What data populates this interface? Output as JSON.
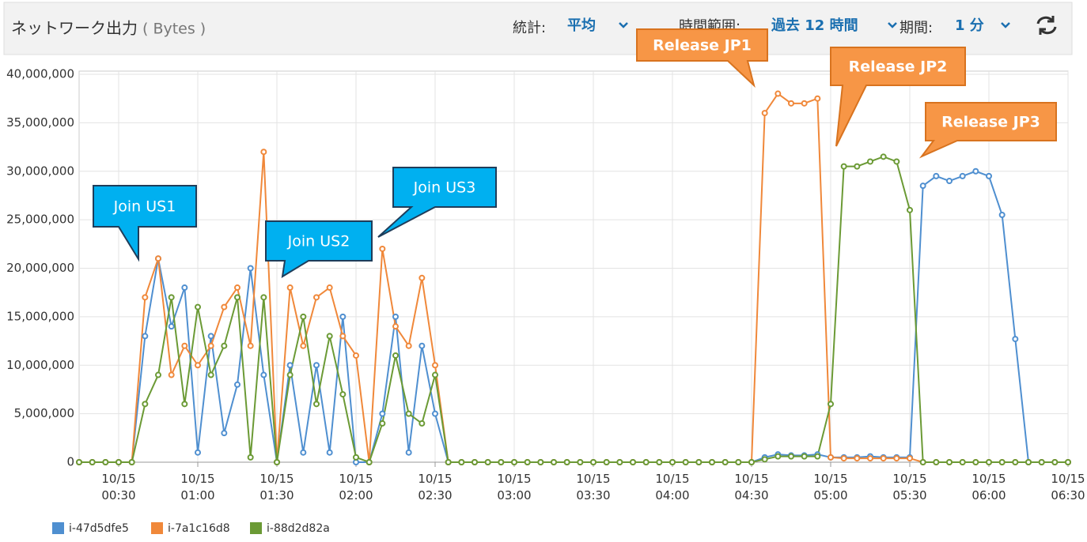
{
  "header": {
    "title": "ネットワーク出力",
    "unit": "( Bytes )",
    "stat_label": "統計:",
    "stat_value": "平均",
    "range_label": "時間範囲:",
    "range_value": "過去 12 時間",
    "period_label": "期間:",
    "period_value": "1 分"
  },
  "chart_data": {
    "type": "line",
    "x": [
      "10/15 00:15",
      "10/15 00:20",
      "10/15 00:25",
      "10/15 00:30",
      "10/15 00:35",
      "10/15 00:40",
      "10/15 00:45",
      "10/15 00:50",
      "10/15 00:55",
      "10/15 01:00",
      "10/15 01:05",
      "10/15 01:10",
      "10/15 01:15",
      "10/15 01:20",
      "10/15 01:25",
      "10/15 01:30",
      "10/15 01:35",
      "10/15 01:40",
      "10/15 01:45",
      "10/15 01:50",
      "10/15 01:55",
      "10/15 02:00",
      "10/15 02:05",
      "10/15 02:10",
      "10/15 02:15",
      "10/15 02:20",
      "10/15 02:25",
      "10/15 02:30",
      "10/15 02:35",
      "10/15 02:40",
      "10/15 02:45",
      "10/15 02:50",
      "10/15 02:55",
      "10/15 03:00",
      "10/15 03:05",
      "10/15 03:10",
      "10/15 03:15",
      "10/15 03:20",
      "10/15 03:25",
      "10/15 03:30",
      "10/15 03:35",
      "10/15 03:40",
      "10/15 03:45",
      "10/15 03:50",
      "10/15 03:55",
      "10/15 04:00",
      "10/15 04:05",
      "10/15 04:10",
      "10/15 04:15",
      "10/15 04:20",
      "10/15 04:25",
      "10/15 04:30",
      "10/15 04:35",
      "10/15 04:40",
      "10/15 04:45",
      "10/15 04:50",
      "10/15 04:55",
      "10/15 05:00",
      "10/15 05:05",
      "10/15 05:10",
      "10/15 05:15",
      "10/15 05:20",
      "10/15 05:25",
      "10/15 05:30",
      "10/15 05:35",
      "10/15 05:40",
      "10/15 05:45",
      "10/15 05:50",
      "10/15 05:55",
      "10/15 06:00",
      "10/15 06:05",
      "10/15 06:10",
      "10/15 06:15",
      "10/15 06:20",
      "10/15 06:25",
      "10/15 06:30"
    ],
    "series": [
      {
        "name": "i-47d5dfe5",
        "color": "#4f8fd0",
        "values": [
          0,
          0,
          0,
          0,
          0,
          13000000,
          21000000,
          14000000,
          18000000,
          1000000,
          13000000,
          3000000,
          8000000,
          20000000,
          9000000,
          0,
          10000000,
          1000000,
          10000000,
          1000000,
          15000000,
          0,
          0,
          5000000,
          15000000,
          1000000,
          12000000,
          5000000,
          0,
          0,
          0,
          0,
          0,
          0,
          0,
          0,
          0,
          0,
          0,
          0,
          0,
          0,
          0,
          0,
          0,
          0,
          0,
          0,
          0,
          0,
          0,
          0,
          500000,
          800000,
          700000,
          700000,
          800000,
          500000,
          500000,
          500000,
          600000,
          500000,
          500000,
          500000,
          28500000,
          29500000,
          29000000,
          29500000,
          30000000,
          29500000,
          25500000,
          12700000,
          0,
          0,
          0,
          0
        ]
      },
      {
        "name": "i-7a1c16d8",
        "color": "#f0883a",
        "values": [
          0,
          0,
          0,
          0,
          0,
          17000000,
          21000000,
          9000000,
          12000000,
          10000000,
          12000000,
          16000000,
          18000000,
          12000000,
          32000000,
          0,
          18000000,
          12000000,
          17000000,
          18000000,
          13000000,
          11000000,
          0,
          22000000,
          14000000,
          12000000,
          19000000,
          10000000,
          0,
          0,
          0,
          0,
          0,
          0,
          0,
          0,
          0,
          0,
          0,
          0,
          0,
          0,
          0,
          0,
          0,
          0,
          0,
          0,
          0,
          0,
          0,
          0,
          36000000,
          38000000,
          37000000,
          37000000,
          37500000,
          500000,
          400000,
          400000,
          400000,
          400000,
          400000,
          400000,
          0,
          0,
          0,
          0,
          0,
          0,
          0,
          0,
          0,
          0,
          0,
          0
        ]
      },
      {
        "name": "i-88d2d82a",
        "color": "#6b9a35",
        "values": [
          0,
          0,
          0,
          0,
          0,
          6000000,
          9000000,
          17000000,
          6000000,
          16000000,
          9000000,
          12000000,
          17000000,
          500000,
          17000000,
          0,
          9000000,
          15000000,
          6000000,
          13000000,
          7000000,
          500000,
          0,
          4000000,
          11000000,
          5000000,
          4000000,
          9000000,
          0,
          0,
          0,
          0,
          0,
          0,
          0,
          0,
          0,
          0,
          0,
          0,
          0,
          0,
          0,
          0,
          0,
          0,
          0,
          0,
          0,
          0,
          0,
          0,
          300000,
          600000,
          600000,
          600000,
          600000,
          6000000,
          30500000,
          30500000,
          31000000,
          31500000,
          31000000,
          26000000,
          0,
          0,
          0,
          0,
          0,
          0,
          0,
          0,
          0,
          0,
          0,
          0
        ]
      }
    ],
    "ylim": [
      0,
      40000000
    ],
    "yticks": [
      {
        "value": 0,
        "label": "0"
      },
      {
        "value": 5000000,
        "label": "5,000,000"
      },
      {
        "value": 10000000,
        "label": "10,000,000"
      },
      {
        "value": 15000000,
        "label": "15,000,000"
      },
      {
        "value": 20000000,
        "label": "20,000,000"
      },
      {
        "value": 25000000,
        "label": "25,000,000"
      },
      {
        "value": 30000000,
        "label": "30,000,000"
      },
      {
        "value": 35000000,
        "label": "35,000,000"
      },
      {
        "value": 40000000,
        "label": "40,000,000"
      }
    ],
    "xticks": [
      {
        "value": "10/15 00:30",
        "label": "10/15\n00:30"
      },
      {
        "value": "10/15 01:00",
        "label": "10/15\n01:00"
      },
      {
        "value": "10/15 01:30",
        "label": "10/15\n01:30"
      },
      {
        "value": "10/15 02:00",
        "label": "10/15\n02:00"
      },
      {
        "value": "10/15 02:30",
        "label": "10/15\n02:30"
      },
      {
        "value": "10/15 03:00",
        "label": "10/15\n03:00"
      },
      {
        "value": "10/15 03:30",
        "label": "10/15\n03:30"
      },
      {
        "value": "10/15 04:00",
        "label": "10/15\n04:00"
      },
      {
        "value": "10/15 04:30",
        "label": "10/15\n04:30"
      },
      {
        "value": "10/15 05:00",
        "label": "10/15\n05:00"
      },
      {
        "value": "10/15 05:30",
        "label": "10/15\n05:30"
      },
      {
        "value": "10/15 06:00",
        "label": "10/15\n06:00"
      },
      {
        "value": "10/15 06:30",
        "label": "10/15\n06:30"
      }
    ],
    "grid": true,
    "legend": "bottom-left",
    "annotations": [
      {
        "text": "Join US1",
        "color": "#00b0f0"
      },
      {
        "text": "Join US2",
        "color": "#00b0f0"
      },
      {
        "text": "Join US3",
        "color": "#00b0f0"
      },
      {
        "text": "Release JP1",
        "color": "#f79646"
      },
      {
        "text": "Release JP2",
        "color": "#f79646"
      },
      {
        "text": "Release JP3",
        "color": "#f79646"
      }
    ]
  }
}
